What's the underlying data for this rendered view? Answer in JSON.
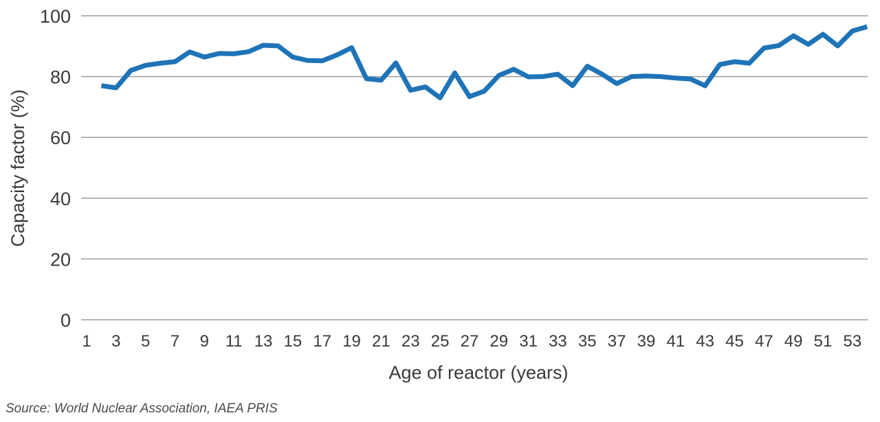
{
  "chart_data": {
    "type": "line",
    "title": "",
    "xlabel": "Age of reactor (years)",
    "ylabel": "Capacity factor (%)",
    "ylim": [
      0,
      100
    ],
    "yticks": [
      "0",
      "20",
      "40",
      "60",
      "80",
      "100"
    ],
    "xticks": [
      "1",
      "3",
      "5",
      "7",
      "9",
      "11",
      "13",
      "15",
      "17",
      "19",
      "21",
      "23",
      "25",
      "27",
      "29",
      "31",
      "33",
      "35",
      "37",
      "39",
      "41",
      "43",
      "45",
      "47",
      "49",
      "51",
      "53"
    ],
    "grid": true,
    "legend": "none",
    "line_color": "#1f73b7",
    "series": [
      {
        "x": [
          2,
          3,
          4,
          5,
          6,
          7,
          8,
          9,
          10,
          11,
          12,
          13,
          14,
          15,
          16,
          17,
          18,
          19,
          20,
          21,
          22,
          23,
          24,
          25,
          26,
          27,
          28,
          29,
          30,
          31,
          32,
          33,
          34,
          35,
          36,
          37,
          38,
          39,
          40,
          41,
          42,
          43,
          44,
          45,
          46,
          47,
          48,
          49,
          50,
          51,
          52,
          53,
          54
        ],
        "values": [
          77.0,
          76.3,
          82.0,
          83.7,
          84.4,
          84.9,
          88.1,
          86.4,
          87.6,
          87.5,
          88.2,
          90.3,
          90.1,
          86.4,
          85.3,
          85.2,
          87.1,
          89.5,
          79.3,
          78.8,
          84.5,
          75.5,
          76.6,
          73.0,
          81.2,
          73.4,
          75.2,
          80.4,
          82.4,
          79.9,
          80.0,
          80.8,
          77.0,
          83.4,
          80.8,
          77.7,
          80.0,
          80.2,
          80.0,
          79.5,
          79.2,
          77.0,
          84.0,
          84.9,
          84.4,
          89.4,
          90.2,
          93.4,
          90.6,
          93.9,
          90.1,
          95.0,
          96.4
        ]
      }
    ]
  },
  "footer": {
    "source": "Source: World Nuclear Association, IAEA PRIS"
  }
}
